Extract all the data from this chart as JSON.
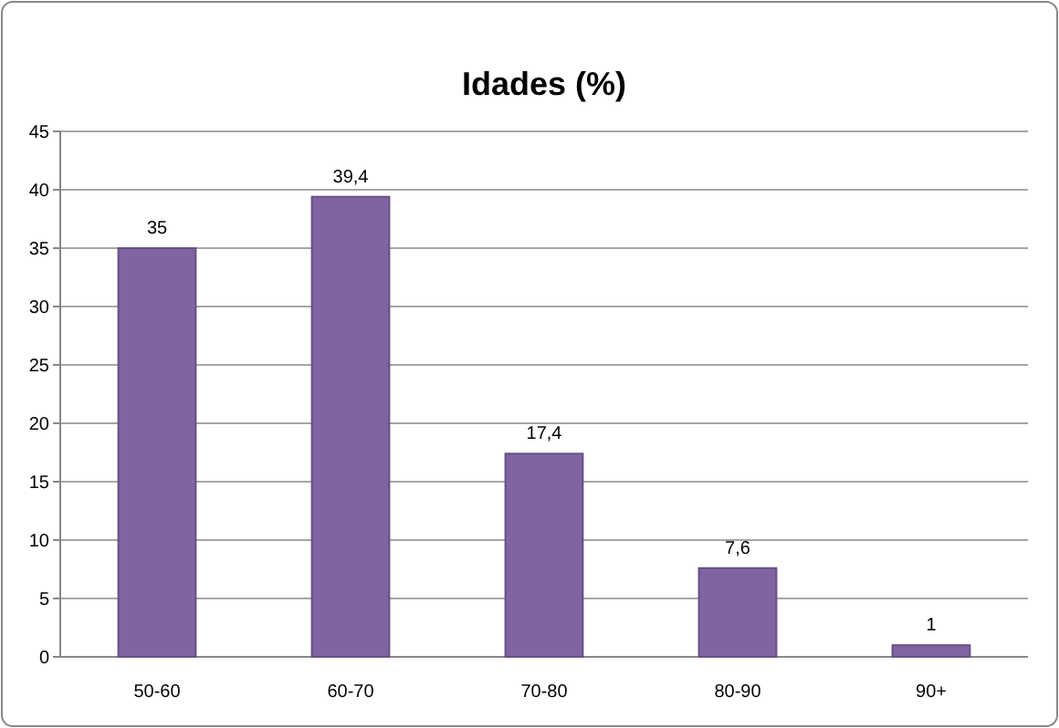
{
  "chart_data": {
    "type": "bar",
    "title": "Idades (%)",
    "categories": [
      "50-60",
      "60-70",
      "70-80",
      "80-90",
      "90+"
    ],
    "values": [
      35,
      39.4,
      17.4,
      7.6,
      1
    ],
    "value_labels": [
      "35",
      "39,4",
      "17,4",
      "7,6",
      "1"
    ],
    "color": "#8064a2",
    "ylim": [
      0,
      45
    ],
    "yticks": [
      0,
      5,
      10,
      15,
      20,
      25,
      30,
      35,
      40,
      45
    ],
    "grid": "y"
  }
}
